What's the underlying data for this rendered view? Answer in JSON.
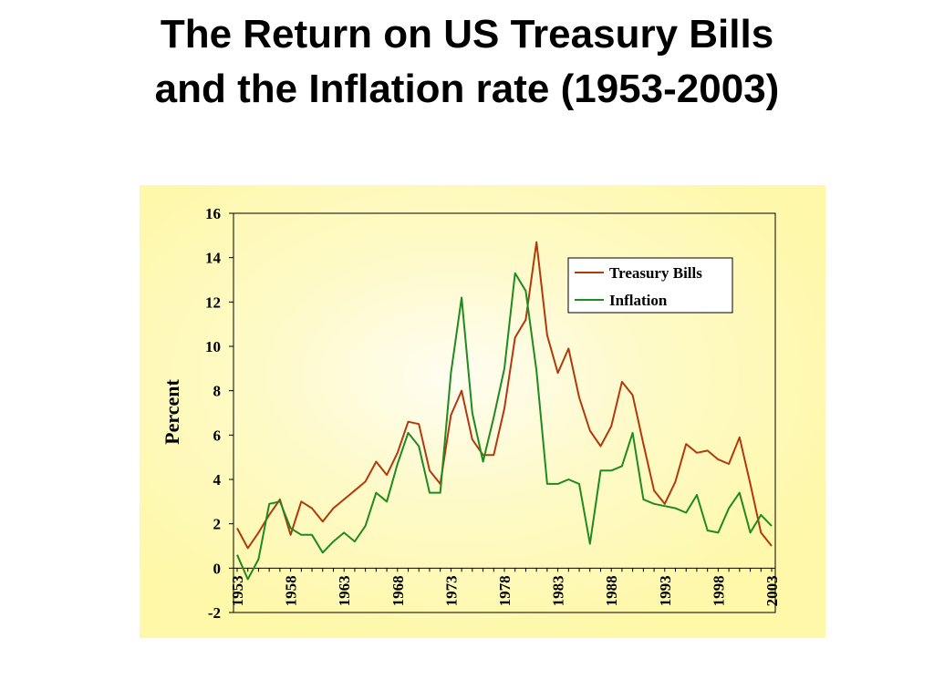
{
  "slide": {
    "title_line1": "The Return on US Treasury Bills",
    "title_line2": "and the Inflation rate (1953-2003)"
  },
  "chart_data": {
    "type": "line",
    "title": "",
    "xlabel": "",
    "ylabel": "Percent",
    "ylim": [
      -2,
      16
    ],
    "yticks": [
      -2,
      0,
      2,
      4,
      6,
      8,
      10,
      12,
      14,
      16
    ],
    "xlim": [
      1953,
      2003
    ],
    "xticks": [
      1953,
      1958,
      1963,
      1968,
      1973,
      1978,
      1983,
      1988,
      1993,
      1998,
      2003
    ],
    "grid": false,
    "legend_position": "top-right",
    "colors": {
      "background": "#fef8a8",
      "treasury_bills": "#b03a0c",
      "inflation": "#1f8a1f"
    },
    "x": [
      1953,
      1954,
      1955,
      1956,
      1957,
      1958,
      1959,
      1960,
      1961,
      1962,
      1963,
      1964,
      1965,
      1966,
      1967,
      1968,
      1969,
      1970,
      1971,
      1972,
      1973,
      1974,
      1975,
      1976,
      1977,
      1978,
      1979,
      1980,
      1981,
      1982,
      1983,
      1984,
      1985,
      1986,
      1987,
      1988,
      1989,
      1990,
      1991,
      1992,
      1993,
      1994,
      1995,
      1996,
      1997,
      1998,
      1999,
      2000,
      2001,
      2002,
      2003
    ],
    "series": [
      {
        "name": "Treasury Bills",
        "values": [
          1.8,
          0.9,
          1.6,
          2.4,
          3.1,
          1.5,
          3.0,
          2.7,
          2.1,
          2.7,
          3.1,
          3.5,
          3.9,
          4.8,
          4.2,
          5.2,
          6.6,
          6.5,
          4.4,
          3.8,
          6.9,
          8.0,
          5.8,
          5.1,
          5.1,
          7.2,
          10.4,
          11.2,
          14.7,
          10.5,
          8.8,
          9.9,
          7.7,
          6.2,
          5.5,
          6.4,
          8.4,
          7.8,
          5.6,
          3.5,
          2.9,
          3.9,
          5.6,
          5.2,
          5.3,
          4.9,
          4.7,
          5.9,
          3.8,
          1.6,
          1.0
        ]
      },
      {
        "name": "Inflation",
        "values": [
          0.6,
          -0.5,
          0.4,
          2.9,
          3.0,
          1.8,
          1.5,
          1.5,
          0.7,
          1.2,
          1.6,
          1.2,
          1.9,
          3.4,
          3.0,
          4.7,
          6.1,
          5.5,
          3.4,
          3.4,
          8.8,
          12.2,
          7.0,
          4.8,
          6.8,
          9.0,
          13.3,
          12.5,
          8.9,
          3.8,
          3.8,
          4.0,
          3.8,
          1.1,
          4.4,
          4.4,
          4.6,
          6.1,
          3.1,
          2.9,
          2.8,
          2.7,
          2.5,
          3.3,
          1.7,
          1.6,
          2.7,
          3.4,
          1.6,
          2.4,
          1.9
        ]
      }
    ]
  }
}
